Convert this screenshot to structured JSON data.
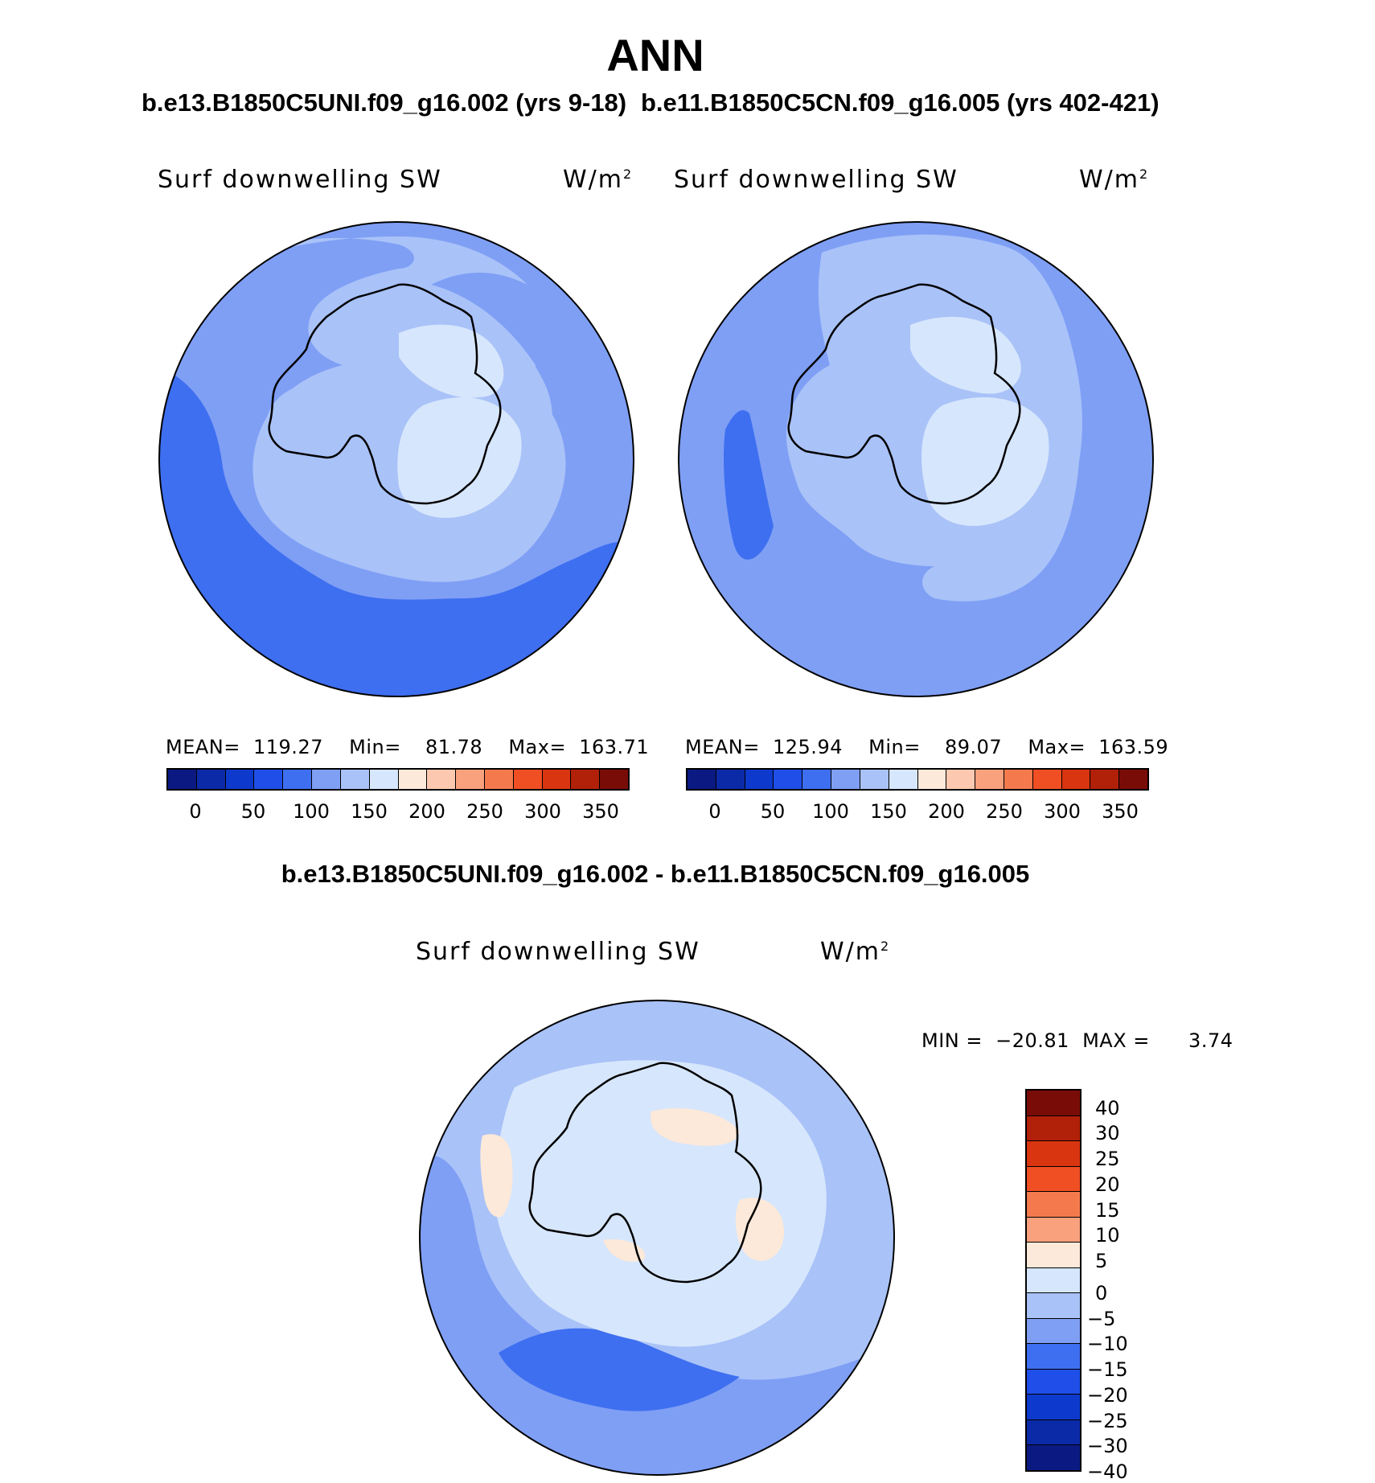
{
  "figure": {
    "title": "ANN",
    "case_left": "b.e13.B1850C5UNI.f09_g16.002 (yrs 9-18)",
    "case_right": "b.e11.B1850C5CN.f09_g16.005 (yrs 402-421)",
    "diff_title": "b.e13.B1850C5UNI.f09_g16.002 - b.e11.B1850C5CN.f09_g16.005"
  },
  "panels": {
    "left": {
      "variable": "Surf downwelling SW",
      "units_base": "W/m",
      "units_exp": "2",
      "mean_label": "MEAN=",
      "mean_value": "119.27",
      "min_label": "Min=",
      "min_value": "81.78",
      "max_label": "Max=",
      "max_value": "163.71"
    },
    "right": {
      "variable": "Surf downwelling SW",
      "units_base": "W/m",
      "units_exp": "2",
      "mean_label": "MEAN=",
      "mean_value": "125.94",
      "min_label": "Min=",
      "min_value": "89.07",
      "max_label": "Max=",
      "max_value": "163.59"
    },
    "diff": {
      "variable": "Surf downwelling SW",
      "units_base": "W/m",
      "units_exp": "2",
      "min_label": "MIN =",
      "min_value": "−20.81",
      "max_label": "MAX =",
      "max_value": "3.74"
    }
  },
  "colors": {
    "abs_scale": [
      "#0a1a82",
      "#0b2aa8",
      "#0d3acc",
      "#1f4fe8",
      "#3e6ff0",
      "#7f9ff5",
      "#a9c2f8",
      "#d6e6fc",
      "#fde9d9",
      "#fcc9b0",
      "#f9a07c",
      "#f47a4e",
      "#f04f24",
      "#d93510",
      "#b12008",
      "#7a0c08"
    ],
    "diff_scale": [
      "#7a0c08",
      "#b12008",
      "#d93510",
      "#f04f24",
      "#f47a4e",
      "#f9a07c",
      "#fde9d9",
      "#d6e6fc",
      "#a9c2f8",
      "#7f9ff5",
      "#3e6ff0",
      "#1f4fe8",
      "#0d3acc",
      "#0b2aa8",
      "#0a1a82"
    ]
  },
  "chart_data": [
    {
      "type": "heatmap",
      "title": "b.e13.B1850C5UNI.f09_g16.002 (yrs 9-18)",
      "variable": "Surf downwelling SW",
      "units": "W/m2",
      "projection": "south polar stereographic",
      "mean": 119.27,
      "min": 81.78,
      "max": 163.71,
      "colorbar_ticks": [
        "0",
        "50",
        "100",
        "150",
        "200",
        "250",
        "300",
        "350"
      ],
      "levels": [
        0,
        25,
        50,
        75,
        100,
        125,
        150,
        175,
        200,
        225,
        250,
        275,
        300,
        325,
        350
      ]
    },
    {
      "type": "heatmap",
      "title": "b.e11.B1850C5CN.f09_g16.005 (yrs 402-421)",
      "variable": "Surf downwelling SW",
      "units": "W/m2",
      "projection": "south polar stereographic",
      "mean": 125.94,
      "min": 89.07,
      "max": 163.59,
      "colorbar_ticks": [
        "0",
        "50",
        "100",
        "150",
        "200",
        "250",
        "300",
        "350"
      ],
      "levels": [
        0,
        25,
        50,
        75,
        100,
        125,
        150,
        175,
        200,
        225,
        250,
        275,
        300,
        325,
        350
      ]
    },
    {
      "type": "heatmap",
      "title": "b.e13.B1850C5UNI.f09_g16.002 - b.e11.B1850C5CN.f09_g16.005",
      "variable": "Surf downwelling SW",
      "units": "W/m2",
      "projection": "south polar stereographic",
      "min": -20.81,
      "max": 3.74,
      "colorbar_ticks": [
        "40",
        "30",
        "25",
        "20",
        "15",
        "10",
        "5",
        "0",
        "−5",
        "−10",
        "−15",
        "−20",
        "−25",
        "−30",
        "−40"
      ],
      "levels": [
        -40,
        -30,
        -25,
        -20,
        -15,
        -10,
        -5,
        0,
        5,
        10,
        15,
        20,
        25,
        30,
        40
      ]
    }
  ]
}
